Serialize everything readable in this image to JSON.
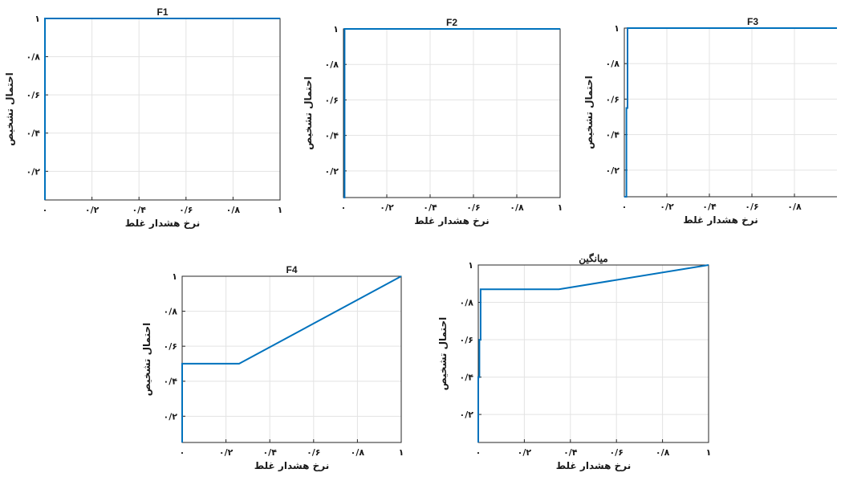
{
  "colors": {
    "line": "#0072BD",
    "axis": "#262626",
    "grid": "#e3e3e3"
  },
  "chart_data": [
    {
      "type": "line",
      "title": "F1",
      "xlabel": "نرخ هشدار غلط",
      "ylabel": "احتمال تشخیص",
      "xlim": [
        0,
        1
      ],
      "ylim": [
        0.05,
        1
      ],
      "grid": true,
      "xticks": [
        0,
        0.2,
        0.4,
        0.6,
        0.8,
        1
      ],
      "xticklabels": [
        "۰",
        "۰/۲",
        "۰/۴",
        "۰/۶",
        "۰/۸",
        "۱"
      ],
      "yticks": [
        0.2,
        0.4,
        0.6,
        0.8,
        1
      ],
      "yticklabels": [
        "۰/۲",
        "۰/۴",
        "۰/۶",
        "۰/۸",
        "۱"
      ],
      "series": [
        {
          "x": [
            0,
            0,
            1
          ],
          "y": [
            0.05,
            1,
            1
          ]
        }
      ]
    },
    {
      "type": "line",
      "title": "F2",
      "xlabel": "نرخ هشدار غلط",
      "ylabel": "احتمال تشخیص",
      "xlim": [
        0,
        1
      ],
      "ylim": [
        0.05,
        1
      ],
      "grid": true,
      "xticks": [
        0,
        0.2,
        0.4,
        0.6,
        0.8,
        1
      ],
      "xticklabels": [
        "۰",
        "۰/۲",
        "۰/۴",
        "۰/۶",
        "۰/۸",
        "۱"
      ],
      "yticks": [
        0.2,
        0.4,
        0.6,
        0.8,
        1
      ],
      "yticklabels": [
        "۰/۲",
        "۰/۴",
        "۰/۶",
        "۰/۸",
        "۱"
      ],
      "series": [
        {
          "x": [
            0,
            0.005,
            0.005,
            1
          ],
          "y": [
            0.05,
            0.05,
            1,
            1
          ]
        }
      ]
    },
    {
      "type": "line",
      "title": "F3",
      "xlabel": "نرخ هشدار غلط",
      "ylabel": "احتمال تشخیص",
      "xlim": [
        0,
        1
      ],
      "ylim": [
        0.05,
        1
      ],
      "grid": true,
      "xticks": [
        0,
        0.2,
        0.4,
        0.6,
        0.8
      ],
      "xticklabels": [
        "۰",
        "۰/۲",
        "۰/۴",
        "۰/۶",
        "۰/۸"
      ],
      "yticks": [
        0.2,
        0.4,
        0.6,
        0.8,
        1
      ],
      "yticklabels": [
        "۰/۲",
        "۰/۴",
        "۰/۶",
        "۰/۸",
        "۱"
      ],
      "series": [
        {
          "x": [
            0,
            0.01,
            0.01,
            0.015,
            0.015,
            1
          ],
          "y": [
            0.05,
            0.05,
            0.55,
            0.55,
            1,
            1
          ]
        }
      ]
    },
    {
      "type": "line",
      "title": "F4",
      "xlabel": "نرخ هشدار غلط",
      "ylabel": "احتمال تشخیص",
      "xlim": [
        0,
        1
      ],
      "ylim": [
        0.05,
        1
      ],
      "grid": true,
      "xticks": [
        0,
        0.2,
        0.4,
        0.6,
        0.8,
        1
      ],
      "xticklabels": [
        "۰",
        "۰/۲",
        "۰/۴",
        "۰/۶",
        "۰/۸",
        "۱"
      ],
      "yticks": [
        0.2,
        0.4,
        0.6,
        0.8,
        1
      ],
      "yticklabels": [
        "۰/۲",
        "۰/۴",
        "۰/۶",
        "۰/۸",
        "۱"
      ],
      "series": [
        {
          "x": [
            0,
            0,
            0.26,
            1
          ],
          "y": [
            0.05,
            0.5,
            0.5,
            1
          ]
        }
      ]
    },
    {
      "type": "line",
      "title": "میانگین",
      "xlabel": "نرخ هشدار غلط",
      "ylabel": "احتمال تشخیص",
      "xlim": [
        0,
        1
      ],
      "ylim": [
        0.05,
        1
      ],
      "grid": true,
      "xticks": [
        0,
        0.2,
        0.4,
        0.6,
        0.8,
        1
      ],
      "xticklabels": [
        "۰",
        "۰/۲",
        "۰/۴",
        "۰/۶",
        "۰/۸",
        "۱"
      ],
      "yticks": [
        0.2,
        0.4,
        0.6,
        0.8,
        1
      ],
      "yticklabels": [
        "۰/۲",
        "۰/۴",
        "۰/۶",
        "۰/۸",
        "۱"
      ],
      "series": [
        {
          "x": [
            0,
            0,
            0.005,
            0.005,
            0.01,
            0.01,
            0.35,
            1
          ],
          "y": [
            0.05,
            0.4,
            0.4,
            0.6,
            0.6,
            0.87,
            0.87,
            1
          ]
        }
      ]
    }
  ]
}
